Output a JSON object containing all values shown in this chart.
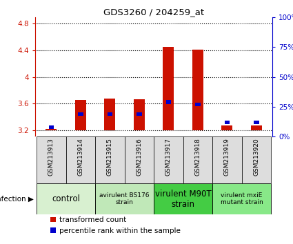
{
  "title": "GDS3260 / 204259_at",
  "samples": [
    "GSM213913",
    "GSM213914",
    "GSM213915",
    "GSM213916",
    "GSM213917",
    "GSM213918",
    "GSM213919",
    "GSM213920"
  ],
  "red_values": [
    3.215,
    3.655,
    3.67,
    3.66,
    4.45,
    4.405,
    3.265,
    3.268
  ],
  "blue_pct": [
    8,
    19,
    19,
    19,
    29,
    27,
    12,
    12
  ],
  "ylim_left": [
    3.1,
    4.9
  ],
  "ylim_right": [
    0,
    100
  ],
  "yticks_left": [
    3.2,
    3.6,
    4.0,
    4.4,
    4.8
  ],
  "ytick_labels_left": [
    "3.2",
    "3.6",
    "4",
    "4.4",
    "4.8"
  ],
  "yticks_right": [
    0,
    25,
    50,
    75,
    100
  ],
  "ytick_labels_right": [
    "0%",
    "25%",
    "50%",
    "75%",
    "100%"
  ],
  "baseline": 3.2,
  "groups": [
    {
      "label": "control",
      "cols": [
        0,
        1
      ],
      "color": "#d8f0d0",
      "fontsize": 8.5
    },
    {
      "label": "avirulent BS176\nstrain",
      "cols": [
        2,
        3
      ],
      "color": "#c0e8b8",
      "fontsize": 6.5
    },
    {
      "label": "virulent M90T\nstrain",
      "cols": [
        4,
        5
      ],
      "color": "#44cc44",
      "fontsize": 8.5
    },
    {
      "label": "virulent mxiE\nmutant strain",
      "cols": [
        6,
        7
      ],
      "color": "#88e888",
      "fontsize": 6.5
    }
  ],
  "bar_color_red": "#cc1100",
  "bar_color_blue": "#0000cc",
  "bar_width": 0.38,
  "blue_bar_width": 0.18,
  "blue_bar_height": 0.055,
  "left_tick_color": "#cc1100",
  "right_tick_color": "#0000cc",
  "infection_label": "infection",
  "legend_red": "transformed count",
  "legend_blue": "percentile rank within the sample",
  "sample_col_bg": "#dddddd"
}
